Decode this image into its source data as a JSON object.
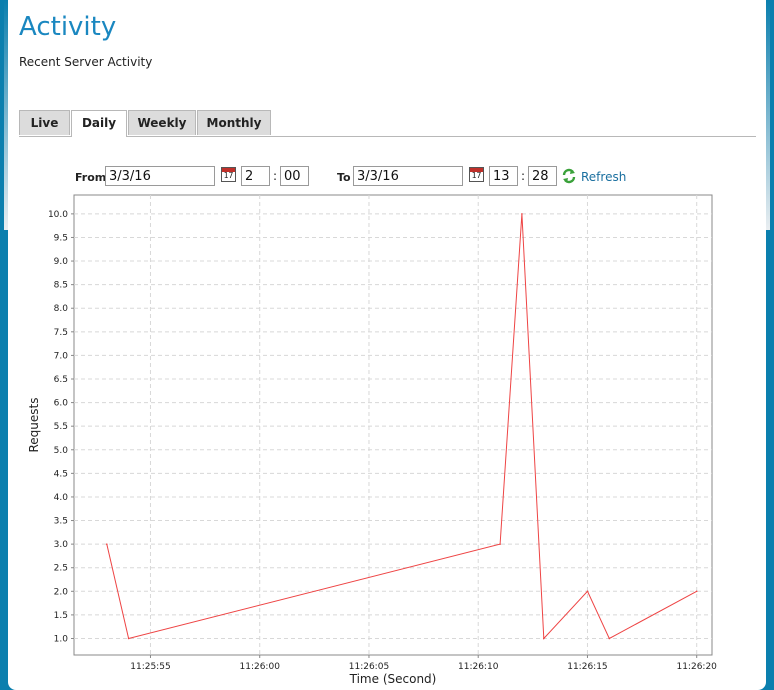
{
  "header": {
    "title": "Activity",
    "subtitle": "Recent Server Activity"
  },
  "tabs": [
    {
      "label": "Live",
      "active": false
    },
    {
      "label": "Daily",
      "active": true
    },
    {
      "label": "Weekly",
      "active": false
    },
    {
      "label": "Monthly",
      "active": false
    }
  ],
  "range": {
    "from_label": "From",
    "from_date": "3/3/16",
    "from_hour": "2",
    "from_minute": "00",
    "to_label": "To",
    "to_date": "3/3/16",
    "to_hour": "13",
    "to_minute": "28",
    "calendar_icon": "calendar-icon",
    "calendar_day": "17",
    "time_separator": ":",
    "refresh_label": "Refresh",
    "refresh_icon": "refresh-icon"
  },
  "colors": {
    "accent": "#1a87c0",
    "series_line": "#ee4444",
    "grid": "#d8d8d8"
  },
  "chart_data": {
    "type": "line",
    "xlabel": "Time (Second)",
    "ylabel": "Requests",
    "ylim": [
      0.65,
      10.4
    ],
    "xlim": [
      "11:25:51.5",
      "11:26:20.7"
    ],
    "x_ticks": [
      "11:25:55",
      "11:26:00",
      "11:26:05",
      "11:26:10",
      "11:26:15",
      "11:26:20"
    ],
    "y_ticks": [
      "1.0",
      "1.5",
      "2.0",
      "2.5",
      "3.0",
      "3.5",
      "4.0",
      "4.5",
      "5.0",
      "5.5",
      "6.0",
      "6.5",
      "7.0",
      "7.5",
      "8.0",
      "8.5",
      "9.0",
      "9.5",
      "10.0"
    ],
    "grid": true,
    "series": [
      {
        "x": [
          "11:25:53",
          "11:25:54",
          "11:26:11",
          "11:26:12",
          "11:26:13",
          "11:26:15",
          "11:26:16",
          "11:26:20"
        ],
        "y": [
          3,
          1,
          3,
          10,
          1,
          2,
          1,
          2
        ]
      }
    ]
  }
}
